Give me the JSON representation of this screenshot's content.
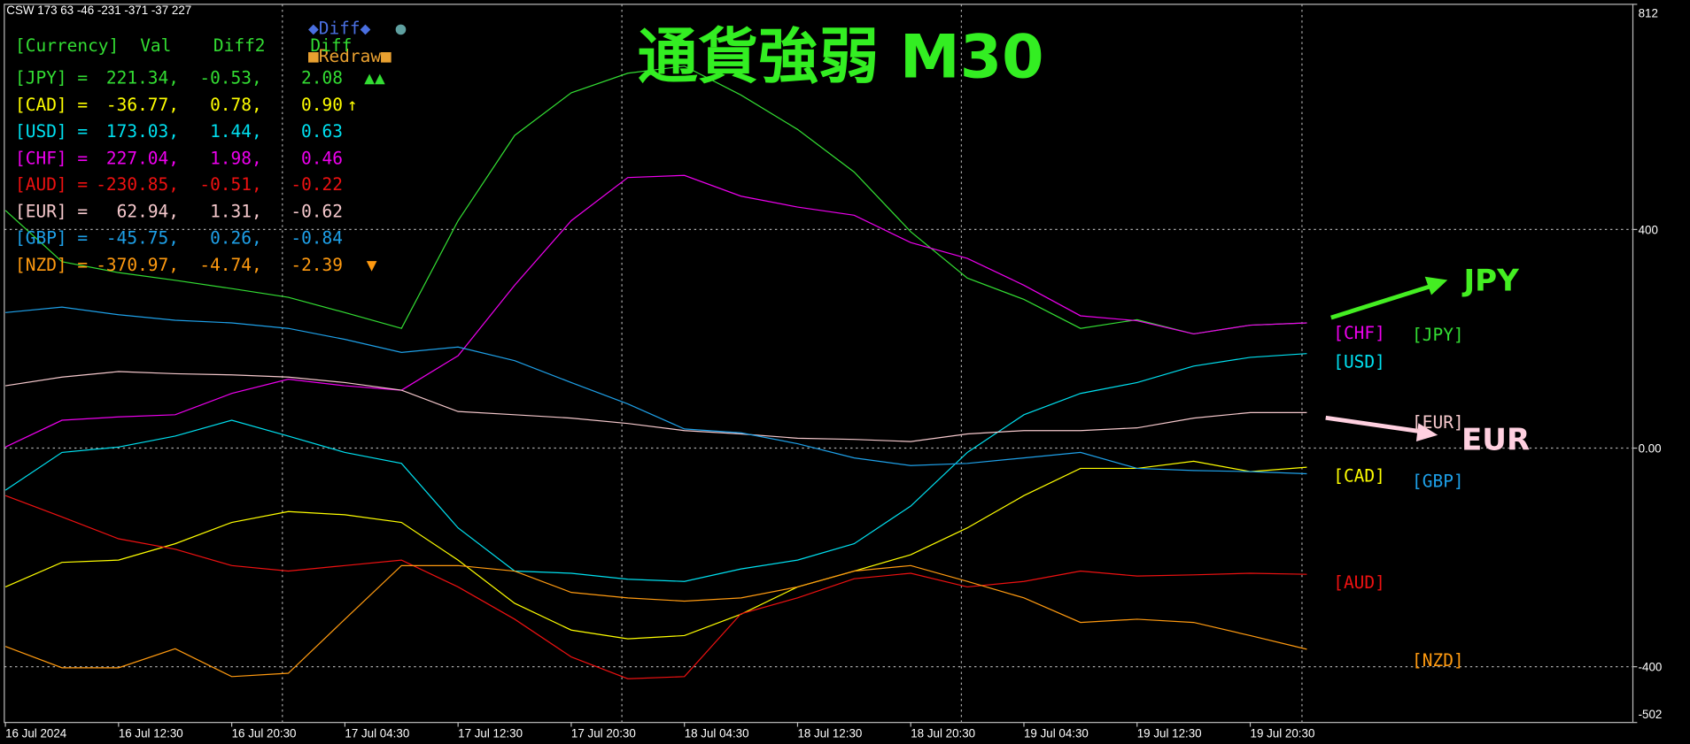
{
  "header": "CSW 173 63 -46 -231 -371 -37 227",
  "buttons": [
    "◆Diff◆",
    "●",
    "■Redraw■"
  ],
  "table": {
    "columns": [
      "[Currency]",
      "Val",
      "Diff2",
      "Diff"
    ],
    "rows": [
      [
        "[JPY] =",
        "221.34,",
        "-0.53,",
        "2.08",
        "▲▲"
      ],
      [
        "[CAD] =",
        "-36.77,",
        "0.78,",
        "0.90",
        "↑"
      ],
      [
        "[USD] =",
        "173.03,",
        "1.44,",
        "0.63"
      ],
      [
        "[CHF] =",
        "227.04,",
        "1.98,",
        "0.46"
      ],
      [
        "[AUD] =",
        "-230.85,",
        "-0.51,",
        "-0.22"
      ],
      [
        "[EUR] =",
        "62.94,",
        "1.31,",
        "-0.62"
      ],
      [
        "[GBP] =",
        "-45.75,",
        "0.26,",
        "-0.84"
      ],
      [
        "[NZD] =",
        "-370.97,",
        "-4.74,",
        "-2.39",
        "▼"
      ]
    ]
  },
  "chart_data": {
    "type": "line",
    "title": "通貨強弱 M30",
    "annotations": [
      "JPY",
      "EUR"
    ],
    "categories": [
      "16 Jul 2024",
      null,
      "16 Jul 12:30",
      null,
      "16 Jul 20:30",
      null,
      "17 Jul 04:30",
      null,
      "17 Jul 12:30",
      null,
      "17 Jul 20:30",
      null,
      "18 Jul 04:30",
      null,
      "18 Jul 12:30",
      null,
      "18 Jul 20:30",
      null,
      "19 Jul 04:30",
      null,
      "19 Jul 12:30",
      null,
      "19 Jul 20:30",
      null
    ],
    "ylim": [
      -502,
      812
    ],
    "yticks": [
      812,
      400,
      {
        "value": 0,
        "label": "0.00"
      },
      -400,
      -502
    ],
    "grid": true,
    "series": [
      {
        "name": "[JPY]",
        "color": "#33dd33",
        "values": [
          435,
          341,
          321,
          307,
          292,
          276,
          248,
          219,
          416,
          572,
          650,
          686,
          699,
          646,
          583,
          505,
          396,
          311,
          272,
          219,
          235,
          209,
          225,
          229
        ]
      },
      {
        "name": "[CAD]",
        "color": "#ffff00",
        "values": [
          -254,
          -209,
          -205,
          -175,
          -136,
          -116,
          -122,
          -136,
          -205,
          -284,
          -333,
          -349,
          -343,
          -304,
          -254,
          -225,
          -195,
          -146,
          -87,
          -37,
          -37,
          -24,
          -43,
          -35
        ]
      },
      {
        "name": "[USD]",
        "color": "#00e0f0",
        "values": [
          -77,
          -8,
          2,
          22,
          51,
          22,
          -8,
          -28,
          -146,
          -225,
          -229,
          -240,
          -244,
          -221,
          -205,
          -175,
          -106,
          -8,
          61,
          100,
          120,
          150,
          166,
          173
        ]
      },
      {
        "name": "[CHF]",
        "color": "#ee00ee",
        "values": [
          2,
          51,
          57,
          61,
          100,
          126,
          114,
          106,
          169,
          298,
          416,
          495,
          499,
          461,
          441,
          426,
          376,
          347,
          298,
          242,
          233,
          209,
          225,
          229
        ]
      },
      {
        "name": "[AUD]",
        "color": "#ee1111",
        "values": [
          -87,
          -126,
          -166,
          -185,
          -215,
          -225,
          -215,
          -205,
          -254,
          -313,
          -382,
          -422,
          -418,
          -303,
          -274,
          -239,
          -229,
          -254,
          -244,
          -225,
          -234,
          -232,
          -229,
          -231
        ]
      },
      {
        "name": "[EUR]",
        "color": "#f5c8cc",
        "values": [
          114,
          130,
          140,
          136,
          134,
          130,
          120,
          106,
          67,
          61,
          55,
          45,
          32,
          26,
          18,
          16,
          12,
          26,
          32,
          32,
          37,
          55,
          65,
          65
        ]
      },
      {
        "name": "[GBP]",
        "color": "#1ea0e8",
        "values": [
          248,
          258,
          244,
          234,
          229,
          219,
          199,
          175,
          185,
          160,
          120,
          81,
          35,
          28,
          8,
          -18,
          -32,
          -28,
          -18,
          -8,
          -37,
          -41,
          -43,
          -47
        ]
      },
      {
        "name": "[NZD]",
        "color": "#ff9a10",
        "values": [
          -363,
          -402,
          -402,
          -367,
          -418,
          -412,
          -313,
          -215,
          -215,
          -225,
          -264,
          -274,
          -280,
          -274,
          -254,
          -225,
          -215,
          -244,
          -274,
          -319,
          -313,
          -319,
          -343,
          -368
        ]
      }
    ]
  }
}
